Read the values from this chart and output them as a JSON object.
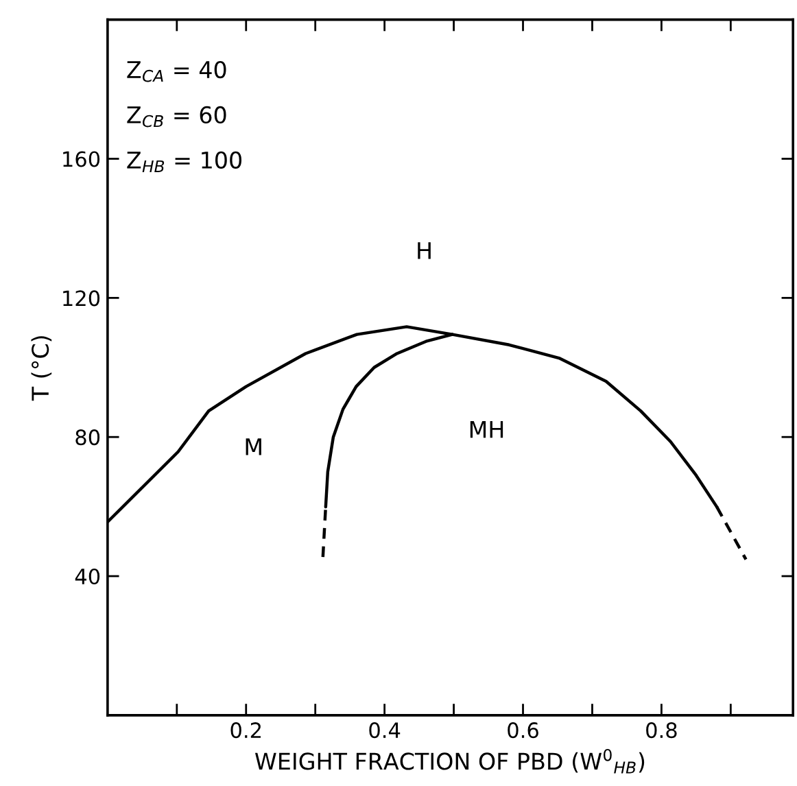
{
  "chart_data": {
    "type": "line",
    "xlabel": "WEIGHT FRACTION OF PBD (W$^{0}$$_{HB}$)",
    "ylabel": "T (°C)",
    "xlim": [
      0,
      0.99
    ],
    "ylim": [
      0,
      200
    ],
    "xticks": [
      {
        "value": 0.1,
        "label": null
      },
      0.2,
      {
        "value": 0.3,
        "label": null
      },
      0.4,
      {
        "value": 0.5,
        "label": null
      },
      0.6,
      {
        "value": 0.7,
        "label": null
      },
      0.8,
      {
        "value": 0.9,
        "label": null
      }
    ],
    "yticks": [
      40,
      80,
      120,
      160
    ],
    "grid": false,
    "legend": false,
    "marker": "none",
    "series": [
      {
        "color": "#000000",
        "line_style": "solid",
        "x": [
          0,
          0.102,
          0.146,
          0.2,
          0.286,
          0.36,
          0.432,
          0.498,
          0.58,
          0.652,
          0.72,
          0.77,
          0.813,
          0.85,
          0.88
        ],
        "values": [
          55.6,
          75.8,
          87.5,
          94.5,
          104,
          109.5,
          111.7,
          109.5,
          106.5,
          102.7,
          96,
          87.5,
          78.7,
          69,
          59.9
        ]
      },
      {
        "color": "#000000",
        "line_style": "dashed",
        "x": [
          0.88,
          0.922
        ],
        "values": [
          59.9,
          44.8
        ]
      },
      {
        "color": "#000000",
        "line_style": "solid",
        "x": [
          0.315,
          0.318,
          0.326,
          0.34,
          0.359,
          0.385,
          0.418,
          0.46,
          0.498
        ],
        "values": [
          59.9,
          70,
          80,
          88,
          94.5,
          100,
          104,
          107.5,
          109.5
        ]
      },
      {
        "color": "#000000",
        "line_style": "dashed",
        "x": [
          0.311,
          0.315
        ],
        "values": [
          45.5,
          59.9
        ]
      }
    ],
    "annotations": [
      "Z$_{CA}$ = 40",
      "Z$_{CB}$ = 60",
      "Z$_{HB}$ = 100",
      "H",
      "M",
      "MH"
    ]
  }
}
